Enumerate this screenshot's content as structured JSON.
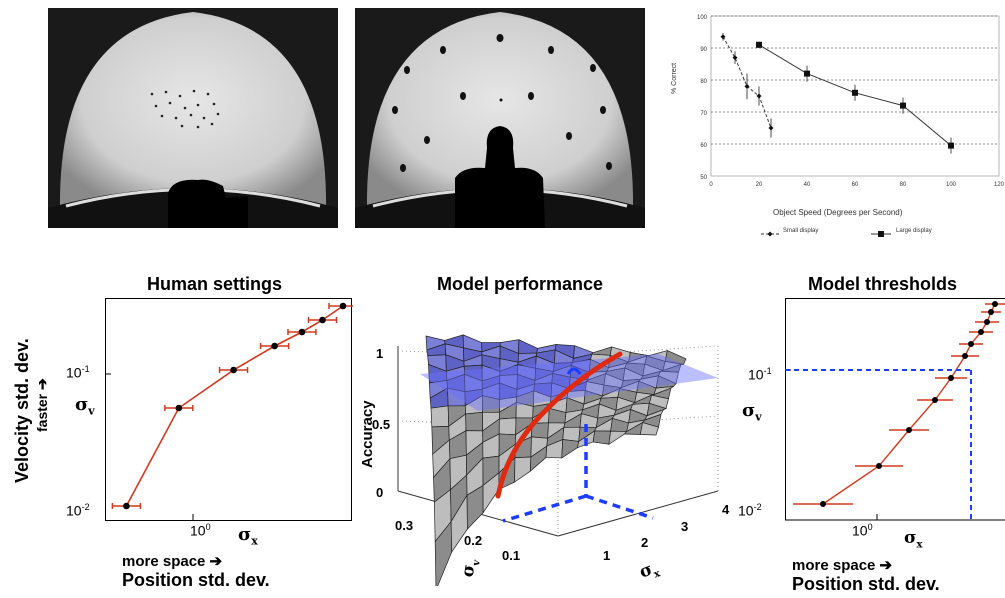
{
  "chart_data": [
    {
      "type": "line",
      "title": "",
      "xlabel": "Object Speed (Degrees per Second)",
      "ylabel": "% Correct",
      "xlim": [
        0,
        120
      ],
      "ylim": [
        50,
        100
      ],
      "x_ticks": [
        "0",
        "20",
        "40",
        "60",
        "80",
        "100",
        "120"
      ],
      "y_ticks": [
        "50",
        "60",
        "70",
        "80",
        "90",
        "100"
      ],
      "grid": "horizontal dashed",
      "legend_position": "bottom",
      "series": [
        {
          "name": "Small display",
          "x": [
            5,
            10,
            15,
            20,
            25
          ],
          "y": [
            93.5,
            87,
            78,
            75,
            65
          ]
        },
        {
          "name": "Large display",
          "x": [
            20,
            40,
            60,
            80,
            100
          ],
          "y": [
            91,
            82,
            76,
            72,
            59.5
          ]
        }
      ]
    },
    {
      "type": "line",
      "title": "Human settings",
      "xlabel": "Position std. dev.",
      "ylabel": "Velocity std. dev.",
      "x_tick_labels": [
        "10⁰"
      ],
      "y_tick_labels": [
        "10⁻¹",
        "10⁻²"
      ],
      "scale": "log",
      "series": [
        {
          "name": "",
          "x_rel": [
            0.05,
            0.28,
            0.52,
            0.7,
            0.82,
            0.91,
            1.0
          ],
          "y_rel": [
            0.0,
            0.49,
            0.68,
            0.8,
            0.87,
            0.93,
            1.0
          ]
        }
      ]
    },
    {
      "type": "surface",
      "title": "Model performance",
      "zlabel": "Accuracy",
      "z_ticks": [
        "0",
        "0.5",
        "1"
      ],
      "sigma_v_ticks": [
        "0.3",
        "0.2",
        "0.1"
      ],
      "sigma_x_ticks": [
        "1",
        "2",
        "3",
        "4"
      ]
    },
    {
      "type": "line",
      "title": "Model thresholds",
      "xlabel": "Position std. dev.",
      "x_tick_labels": [
        "10⁰"
      ],
      "y_tick_labels": [
        "10⁻¹",
        "10⁻²"
      ],
      "scale": "log"
    }
  ],
  "text": {
    "title_human": "Human settings",
    "title_perf": "Model performance",
    "title_thresh": "Model thresholds",
    "y_velocity": "Velocity std. dev.",
    "y_faster": "faster ➔",
    "sigma_v": "σ",
    "sub_v": "v",
    "sigma_x": "σ",
    "sub_x": "x",
    "more_space": "more space ➔",
    "pos_std": "Position std. dev.",
    "tick_1e-1": "10",
    "tick_1e-1_exp": "-1",
    "tick_1e-2": "10",
    "tick_1e-2_exp": "-2",
    "tick_1e0": "10",
    "tick_1e0_exp": "0",
    "accuracy": "Accuracy",
    "z0": "0",
    "z05": "0.5",
    "z1": "1",
    "sv03": "0.3",
    "sv02": "0.2",
    "sv01": "0.1",
    "sx1": "1",
    "sx2": "2",
    "sx3": "3",
    "sx4": "4",
    "x_axis_label": "Object Speed (Degrees per Second)",
    "y_axis_label": "% Correct",
    "legend_small": "Small display",
    "legend_large": "Large display"
  }
}
